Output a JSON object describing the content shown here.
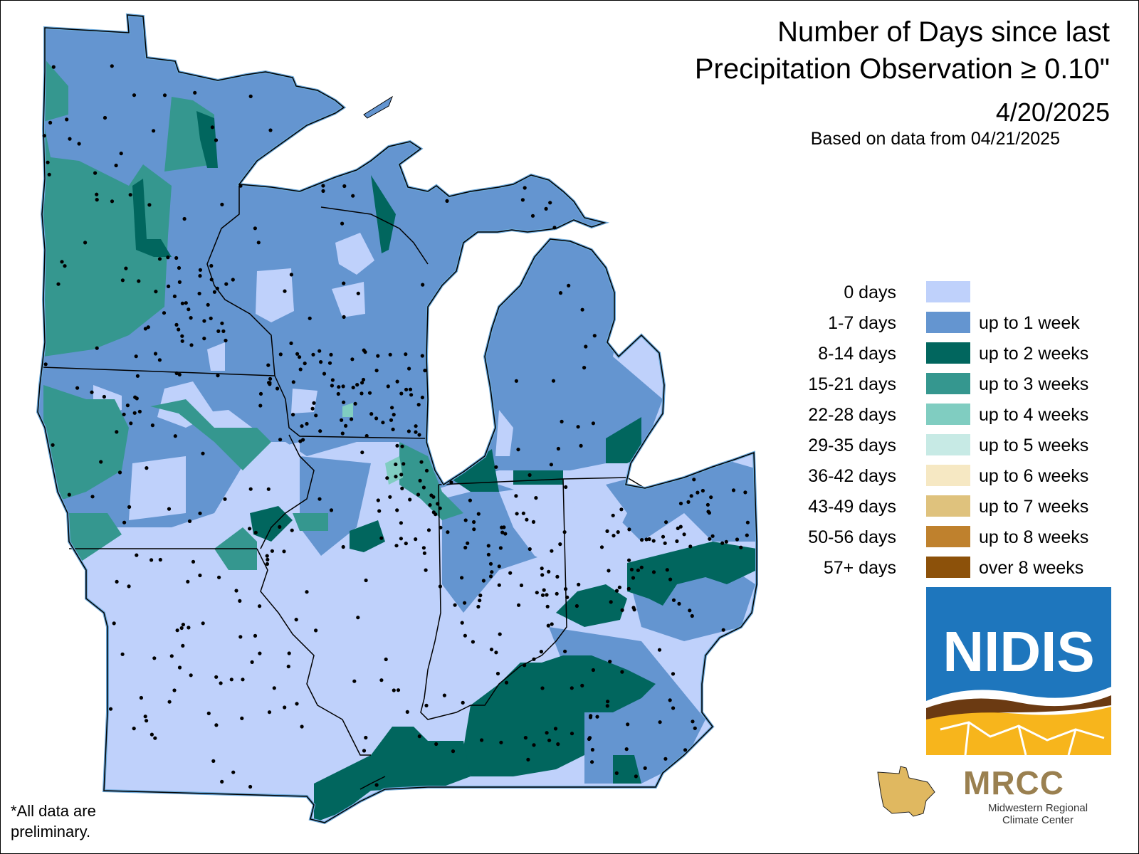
{
  "header": {
    "title_line1": "Number of Days since last",
    "title_line2": "Precipitation Observation ≥ 0.10\"",
    "date": "4/20/2025",
    "based_on": "Based on data from 04/21/2025"
  },
  "legend": {
    "items": [
      {
        "range": "0 days",
        "label": "",
        "color": "#bfd1fb"
      },
      {
        "range": "1-7 days",
        "label": "up to 1 week",
        "color": "#6495d0"
      },
      {
        "range": "8-14 days",
        "label": "up to 2 weeks",
        "color": "#01665e"
      },
      {
        "range": "15-21 days",
        "label": "up to 3 weeks",
        "color": "#35978f"
      },
      {
        "range": "22-28 days",
        "label": "up to 4 weeks",
        "color": "#80cdc1"
      },
      {
        "range": "29-35 days",
        "label": "up to 5 weeks",
        "color": "#c7eae5"
      },
      {
        "range": "36-42 days",
        "label": "up to 6 weeks",
        "color": "#f6e8c3"
      },
      {
        "range": "43-49 days",
        "label": "up to 7 weeks",
        "color": "#dfc27d"
      },
      {
        "range": "50-56 days",
        "label": "up to 8 weeks",
        "color": "#bf812d"
      },
      {
        "range": "57+ days",
        "label": "over 8 weeks",
        "color": "#8c510a"
      }
    ]
  },
  "footnote": {
    "line1": "*All data are",
    "line2": "preliminary."
  },
  "logos": {
    "nidis": "NIDIS",
    "mrcc": "MRCC",
    "mrcc_sub1": "Midwestern Regional",
    "mrcc_sub2": "Climate Center"
  },
  "map": {
    "region": "Midwest United States",
    "water_color": "#ffffff",
    "border_color": "#000000",
    "coast_color": "#6aa7d8"
  }
}
